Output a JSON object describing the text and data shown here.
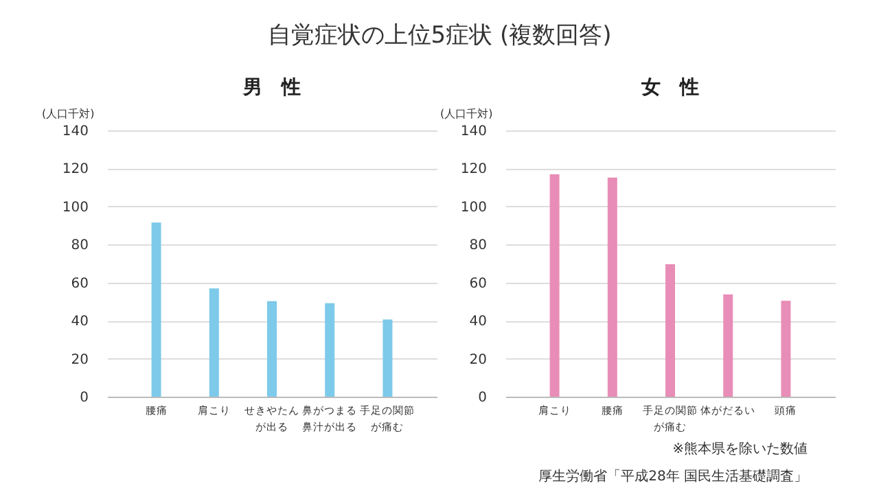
{
  "chart_data": [
    {
      "type": "bar",
      "title": "男　性",
      "ylabel": "(人口千対)",
      "annotations": [
        "自覚症状の上位5症状 (複数回答)"
      ],
      "categories": [
        "腰痛",
        "肩こり",
        "せきやたんが出る",
        "鼻がつまる鼻汁が出る",
        "手足の関節が痛む"
      ],
      "values": [
        91.6,
        56.9,
        50.2,
        49.2,
        40.6
      ],
      "color": "#7dcaea",
      "ylim": [
        0,
        140
      ],
      "yticks": [
        0,
        20,
        40,
        60,
        80,
        100,
        120,
        140
      ],
      "grid": "y"
    },
    {
      "type": "bar",
      "title": "女　性",
      "ylabel": "(人口千対)",
      "annotations": [
        "※熊本県を除いた数値",
        "厚生労働省「平成28年 国民生活基礎調査」"
      ],
      "categories": [
        "肩こり",
        "腰痛",
        "手足の関節が痛む",
        "体がだるい",
        "頭痛"
      ],
      "values": [
        116.9,
        115.2,
        69.6,
        53.8,
        50.4
      ],
      "color": "#e88db7",
      "ylim": [
        0,
        140
      ],
      "yticks": [
        0,
        20,
        40,
        60,
        80,
        100,
        120,
        140
      ],
      "grid": "y"
    }
  ]
}
